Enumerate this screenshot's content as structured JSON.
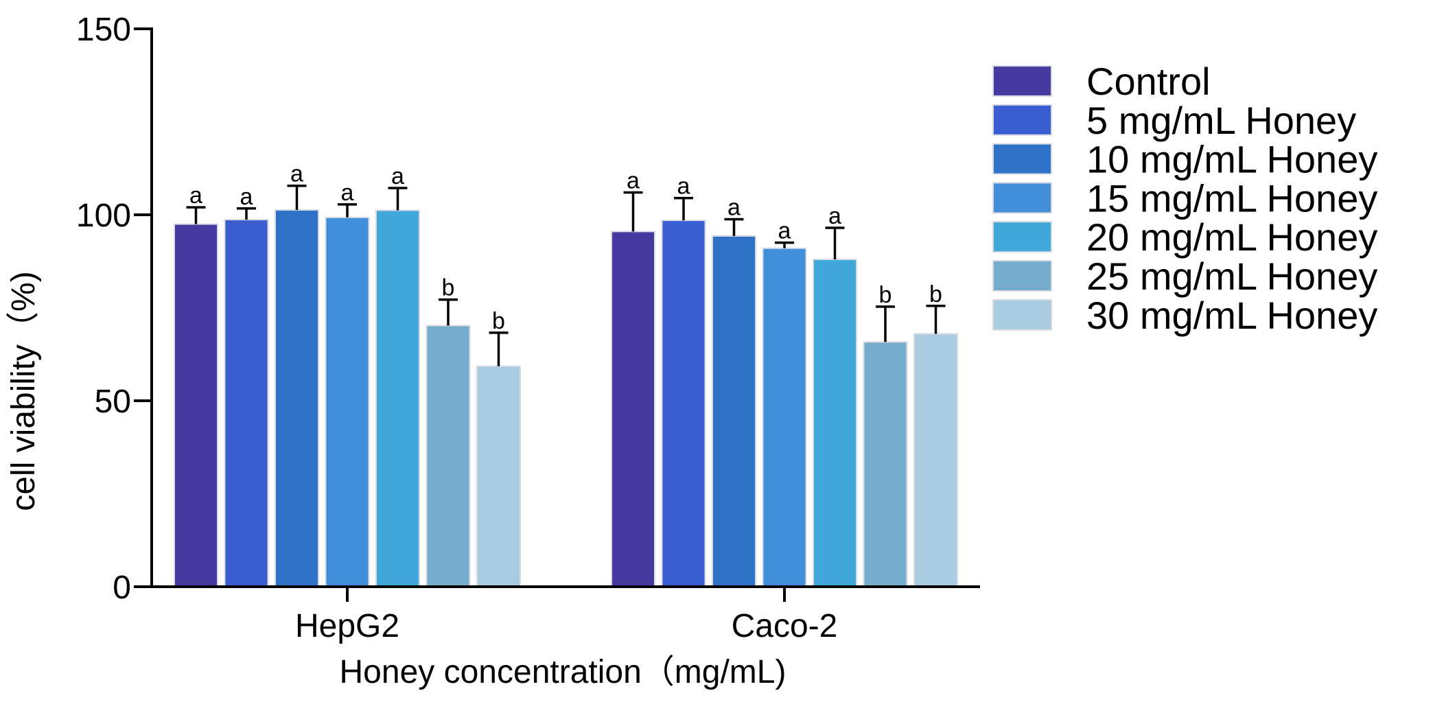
{
  "chart_data": {
    "type": "bar",
    "title": "",
    "xlabel": "Honey concentration（mg/mL)",
    "ylabel": "cell viability（%)",
    "ylim": [
      0,
      150
    ],
    "yticks": [
      0,
      50,
      100,
      150
    ],
    "grid": false,
    "legend_position": "right",
    "categories": [
      "HepG2",
      "Caco-2"
    ],
    "series": [
      {
        "name": "Control",
        "color": "#4639A0",
        "values": [
          97.5,
          95.5
        ],
        "errors": [
          4.5,
          10.5
        ],
        "labels": [
          "a",
          "a"
        ]
      },
      {
        "name": "5 mg/mL Honey",
        "color": "#3A5ED2",
        "values": [
          98.7,
          98.5
        ],
        "errors": [
          3.0,
          6.0
        ],
        "labels": [
          "a",
          "a"
        ]
      },
      {
        "name": "10 mg/mL Honey",
        "color": "#2F73C8",
        "values": [
          101.3,
          94.3
        ],
        "errors": [
          6.5,
          4.5
        ],
        "labels": [
          "a",
          "a"
        ]
      },
      {
        "name": "15 mg/mL Honey",
        "color": "#428ED9",
        "values": [
          99.3,
          91.0
        ],
        "errors": [
          3.5,
          1.5
        ],
        "labels": [
          "a",
          "a"
        ]
      },
      {
        "name": "20 mg/mL Honey",
        "color": "#3FA8D9",
        "values": [
          101.2,
          88.0
        ],
        "errors": [
          6.0,
          8.5
        ],
        "labels": [
          "a",
          "a"
        ]
      },
      {
        "name": "25 mg/mL Honey",
        "color": "#76ACCB",
        "values": [
          70.2,
          65.8
        ],
        "errors": [
          7.0,
          9.5
        ],
        "labels": [
          "b",
          "b"
        ]
      },
      {
        "name": "30 mg/mL Honey",
        "color": "#A8CBE0",
        "values": [
          59.3,
          68.0
        ],
        "errors": [
          9.0,
          7.5
        ],
        "labels": [
          "b",
          "b"
        ]
      }
    ]
  }
}
